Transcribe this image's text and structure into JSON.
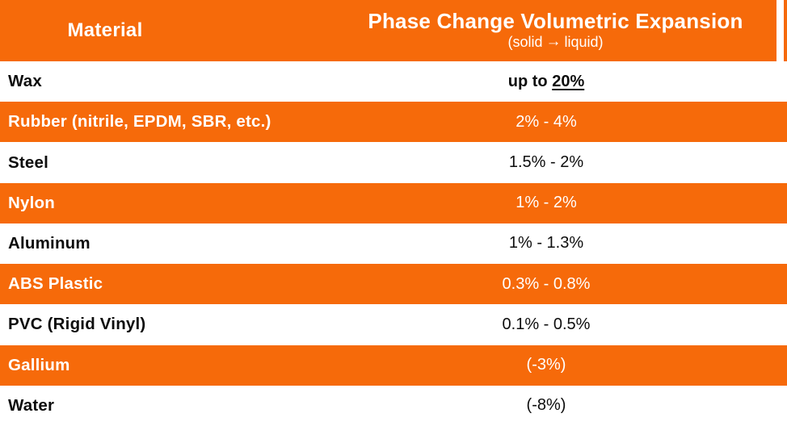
{
  "colors": {
    "orange": "#F66A0A",
    "white": "#FFFFFF",
    "text_dark": "#0D0D0D"
  },
  "table": {
    "header": {
      "material_label": "Material",
      "expansion_title": "Phase Change Volumetric Expansion",
      "subtitle_pre": "(solid",
      "subtitle_arrow": "→",
      "subtitle_post": "liquid)"
    },
    "rows": [
      {
        "material": "Wax",
        "value": "up to 20%",
        "value_prefix": "up to ",
        "value_underlined": "20%",
        "value_bold": true,
        "highlight": false
      },
      {
        "material": "Rubber (nitrile, EPDM, SBR, etc.)",
        "value": "2% - 4%",
        "highlight": true
      },
      {
        "material": "Steel",
        "value": "1.5% - 2%",
        "highlight": false
      },
      {
        "material": "Nylon",
        "value": "1% - 2%",
        "highlight": true
      },
      {
        "material": "Aluminum",
        "value": "1% - 1.3%",
        "highlight": false
      },
      {
        "material": "ABS Plastic",
        "value": "0.3% - 0.8%",
        "highlight": true
      },
      {
        "material": "PVC (Rigid Vinyl)",
        "value": "0.1% - 0.5%",
        "highlight": false
      },
      {
        "material": "Gallium",
        "value": "(-3%)",
        "highlight": true
      },
      {
        "material": "Water",
        "value": "(-8%)",
        "highlight": false
      }
    ]
  },
  "chart_data": {
    "type": "table",
    "title": "Phase Change Volumetric Expansion (solid → liquid)",
    "columns": [
      "Material",
      "Phase Change Volumetric Expansion (solid → liquid)"
    ],
    "rows": [
      [
        "Wax",
        "up to 20%"
      ],
      [
        "Rubber (nitrile, EPDM, SBR, etc.)",
        "2% - 4%"
      ],
      [
        "Steel",
        "1.5% - 2%"
      ],
      [
        "Nylon",
        "1% - 2%"
      ],
      [
        "Aluminum",
        "1% - 1.3%"
      ],
      [
        "ABS Plastic",
        "0.3% - 0.8%"
      ],
      [
        "PVC (Rigid Vinyl)",
        "0.1% - 0.5%"
      ],
      [
        "Gallium",
        "(-3%)"
      ],
      [
        "Water",
        "(-8%)"
      ]
    ],
    "notes": "Orange highlighted rows alternate with white rows; Wax value bold with 20% underlined; Gallium and Water contract (negative expansion)."
  }
}
